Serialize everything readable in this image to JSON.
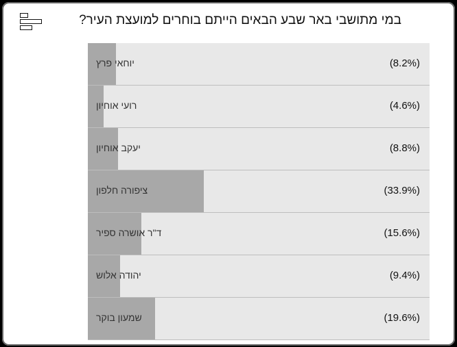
{
  "header": {
    "icon": "menu-icon",
    "title": "במי מתושבי באר שבע הבאים הייתם בוחרים למועצת העיר?"
  },
  "colors": {
    "fill": "#a8a8a8",
    "track": "#e8e8e8"
  },
  "options": [
    {
      "name": "יוחאי פרץ",
      "percent": 8.2,
      "label": "(8.2%)"
    },
    {
      "name": "רועי אוחיון",
      "percent": 4.6,
      "label": "(4.6%)"
    },
    {
      "name": "יעקב אוחיון",
      "percent": 8.8,
      "label": "(8.8%)"
    },
    {
      "name": "ציפורה חלפון",
      "percent": 33.9,
      "label": "(33.9%)"
    },
    {
      "name": "ד\"ר אושרה ספיר",
      "percent": 15.6,
      "label": "(15.6%)"
    },
    {
      "name": "יהודה אלוש",
      "percent": 9.4,
      "label": "(9.4%)"
    },
    {
      "name": "שמעון בוקר",
      "percent": 19.6,
      "label": "(19.6%)"
    }
  ]
}
